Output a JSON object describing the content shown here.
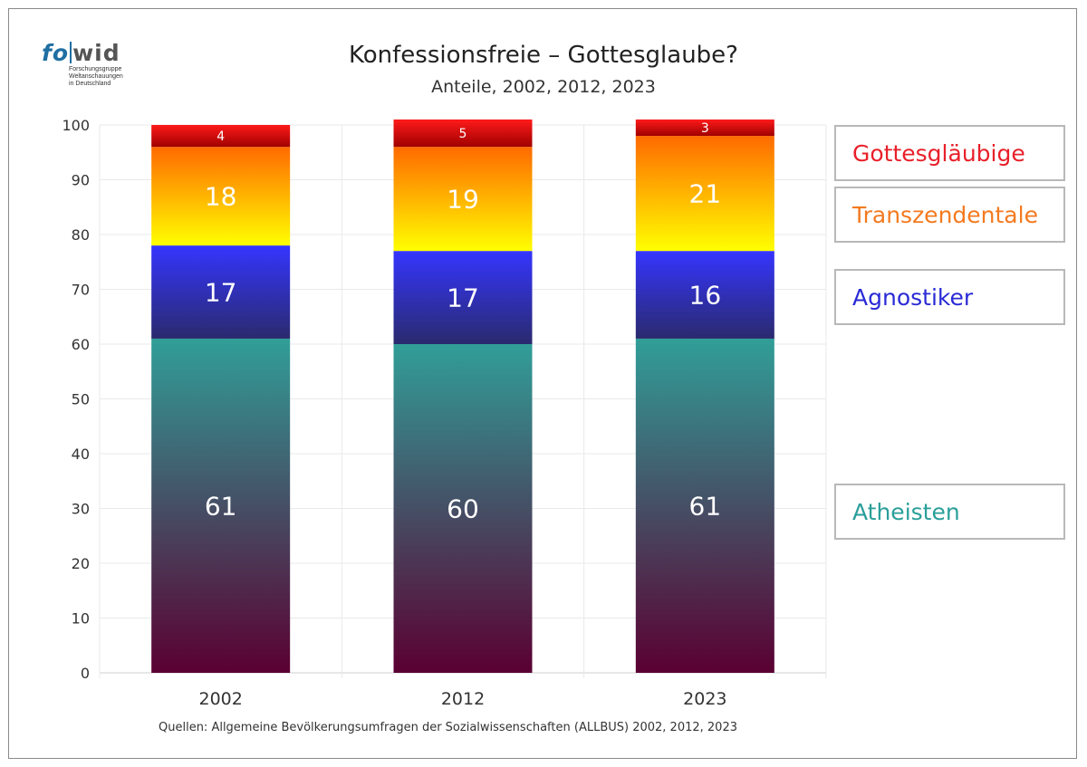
{
  "logo": {
    "text_fo": "fo",
    "text_wid": "wid",
    "sub_lines": [
      "Forschungsgruppe",
      "Weltanschauungen",
      "in Deutschland"
    ]
  },
  "title": "Konfessionsfreie – Gottesglaube?",
  "subtitle": "Anteile, 2002, 2012, 2023",
  "source": "Quellen: Allgemeine Bevölkerungsumfragen der Sozialwissenschaften (ALLBUS) 2002, 2012, 2023",
  "legend": [
    {
      "label": "Gottesgläubige",
      "color": "#e8202a"
    },
    {
      "label": "Transzendentale",
      "color": "#f47a20"
    },
    {
      "label": "Agnostiker",
      "color": "#2a2ad6"
    },
    {
      "label": "Atheisten",
      "color": "#2a9e98"
    }
  ],
  "chart_data": {
    "type": "bar",
    "stacked": true,
    "categories": [
      "2002",
      "2012",
      "2023"
    ],
    "series": [
      {
        "name": "Atheisten",
        "values": [
          61,
          60,
          61
        ],
        "colors": [
          "#319e98",
          "#5a0032"
        ]
      },
      {
        "name": "Agnostiker",
        "values": [
          17,
          17,
          16
        ],
        "colors": [
          "#3535ff",
          "#2a2a6e"
        ]
      },
      {
        "name": "Transzendentale",
        "values": [
          18,
          19,
          21
        ],
        "colors": [
          "#ff6a00",
          "#ffff00"
        ]
      },
      {
        "name": "Gottesgläubige",
        "values": [
          4,
          5,
          3
        ],
        "colors": [
          "#ff1a1a",
          "#a00000"
        ]
      }
    ],
    "ylim": [
      0,
      100
    ],
    "yticks": [
      0,
      10,
      20,
      30,
      40,
      50,
      60,
      70,
      80,
      90,
      100
    ],
    "grid": true,
    "legend_position": "right"
  }
}
